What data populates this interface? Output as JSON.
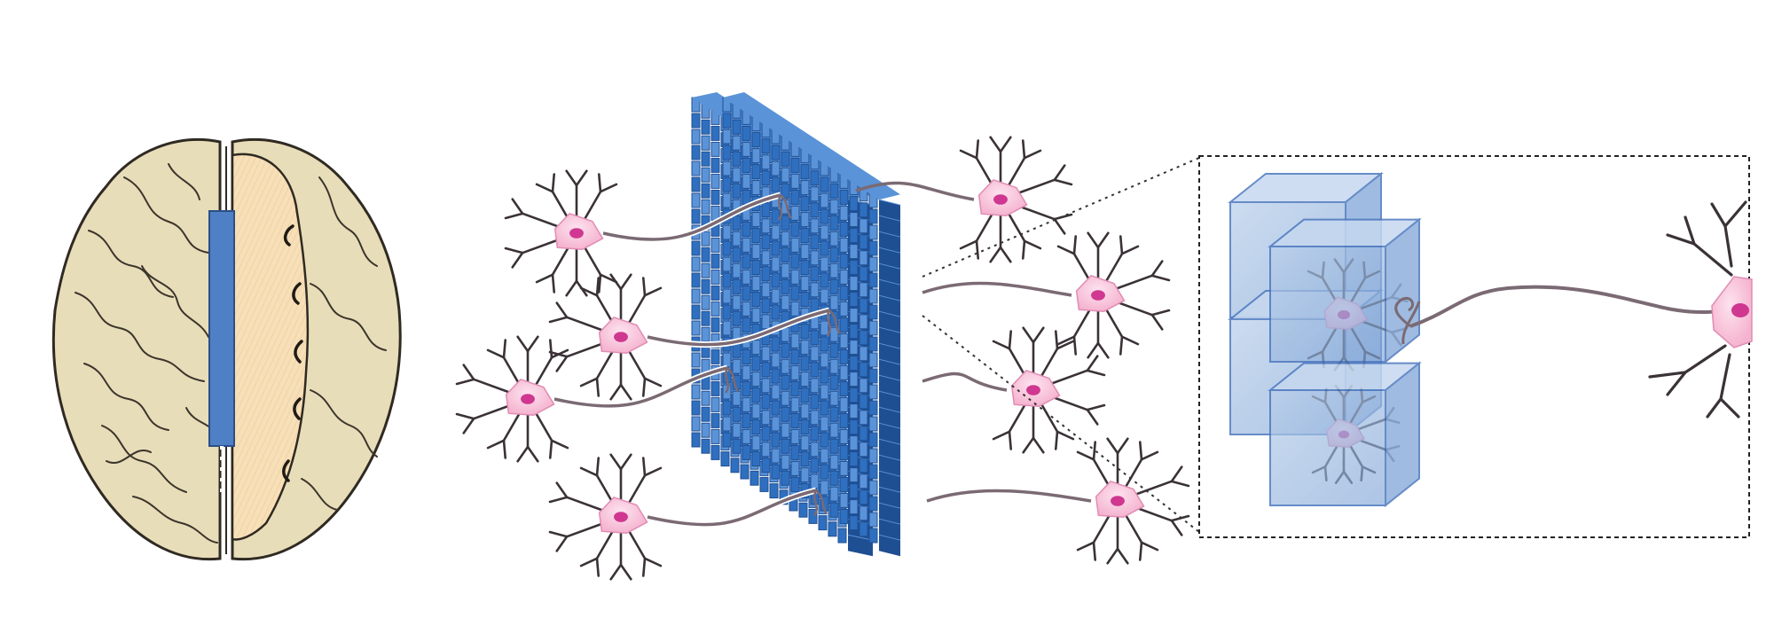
{
  "figure": {
    "panels": [
      {
        "id": "brain",
        "icon": "brain-top-view-icon",
        "implant": "blue-electrode-strip"
      },
      {
        "id": "electrode-array",
        "icon": "3d-voxel-grid-icon",
        "neurons_left": 4,
        "neurons_right": 4
      },
      {
        "id": "zoom-inset",
        "icon": "voxel-cubes-with-neuron-icon",
        "border": "dashed"
      }
    ],
    "colors": {
      "brain_fill": "#e8ddb9",
      "brain_outline": "#2f2a22",
      "white_matter": "#f7dfb7",
      "grid_blue": "#2f6fbf",
      "grid_dark": "#1f4f93",
      "grid_light": "#5a93d8",
      "neuron_body": "#f7bfd7",
      "neuron_nucleus": "#d03790",
      "neuron_dendrite": "#3a3237",
      "axon": "#7b6a73",
      "cube_fill": "#9fbde2",
      "cube_edge": "#4c78bf",
      "inset_border": "#222222"
    }
  }
}
